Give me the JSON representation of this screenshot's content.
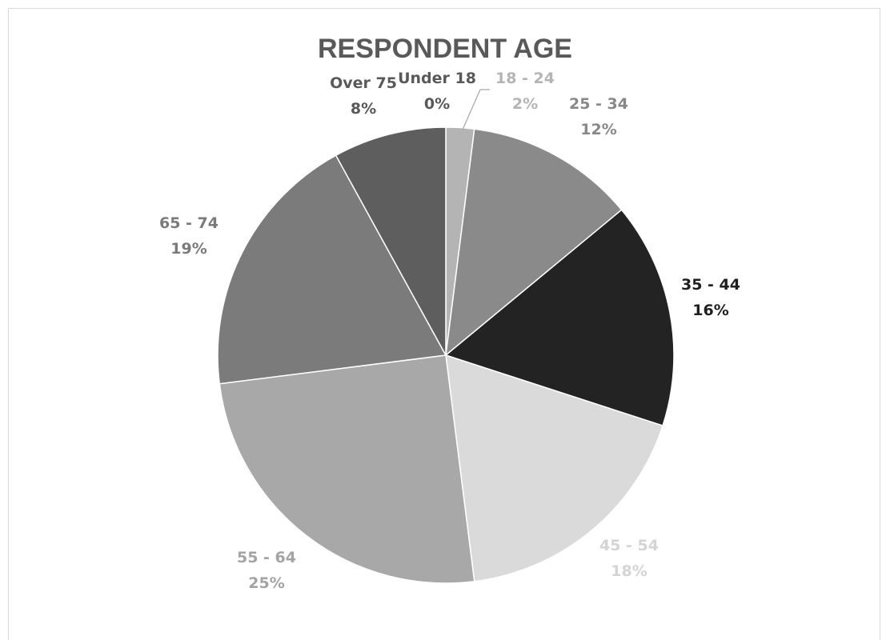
{
  "chart_data": {
    "type": "pie",
    "title": "RESPONDENT AGE",
    "slices": [
      {
        "label": "Under 18",
        "value": 0,
        "percent_label": "0%",
        "color": "#636363",
        "label_color": "#595959"
      },
      {
        "label": "18 - 24",
        "value": 2,
        "percent_label": "2%",
        "color": "#b4b4b4",
        "label_color": "#b4b4b4"
      },
      {
        "label": "25 - 34",
        "value": 12,
        "percent_label": "12%",
        "color": "#8a8a8a",
        "label_color": "#888888"
      },
      {
        "label": "35 - 44",
        "value": 16,
        "percent_label": "16%",
        "color": "#232323",
        "label_color": "#1e1e1e"
      },
      {
        "label": "45 - 54",
        "value": 18,
        "percent_label": "18%",
        "color": "#dadada",
        "label_color": "#d4d4d4"
      },
      {
        "label": "55 - 64",
        "value": 25,
        "percent_label": "25%",
        "color": "#a8a8a8",
        "label_color": "#a3a3a3"
      },
      {
        "label": "65 - 74",
        "value": 19,
        "percent_label": "19%",
        "color": "#7b7b7b",
        "label_color": "#7a7a7a"
      },
      {
        "label": "Over 75",
        "value": 8,
        "percent_label": "8%",
        "color": "#5e5e5e",
        "label_color": "#595959"
      }
    ],
    "legend": "none",
    "data_labels": "category-and-percent"
  }
}
